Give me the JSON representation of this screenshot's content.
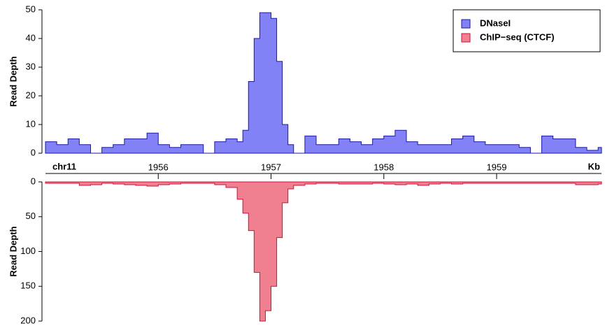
{
  "chart_data": [
    {
      "type": "area",
      "ylabel": "Read Depth",
      "ylim": [
        0,
        50
      ],
      "yticks": [
        0,
        10,
        20,
        30,
        40,
        50
      ],
      "xlim": [
        1955,
        1959.93
      ],
      "xticks": [
        1956,
        1957,
        1958,
        1959
      ],
      "x_start_label": "chr11",
      "xlabel": "Kb",
      "legend": "top-right",
      "x": [
        1955.0,
        1955.1,
        1955.2,
        1955.3,
        1955.4,
        1955.5,
        1955.6,
        1955.7,
        1955.8,
        1955.9,
        1956.0,
        1956.1,
        1956.2,
        1956.3,
        1956.4,
        1956.5,
        1956.6,
        1956.7,
        1956.75,
        1956.8,
        1956.85,
        1956.9,
        1956.95,
        1957.0,
        1957.05,
        1957.1,
        1957.15,
        1957.2,
        1957.3,
        1957.4,
        1957.5,
        1957.6,
        1957.7,
        1957.8,
        1957.9,
        1958.0,
        1958.1,
        1958.2,
        1958.3,
        1958.4,
        1958.5,
        1958.6,
        1958.7,
        1958.8,
        1958.9,
        1959.0,
        1959.1,
        1959.2,
        1959.3,
        1959.4,
        1959.5,
        1959.6,
        1959.7,
        1959.8,
        1959.9
      ],
      "series": [
        {
          "name": "DNaseI",
          "color": "#8282f6",
          "line_color": "#1a1aa0",
          "values": [
            4,
            3,
            5,
            3,
            0,
            2,
            3,
            5,
            5,
            7,
            3,
            2,
            3,
            3,
            0,
            4,
            5,
            4,
            8,
            25,
            40,
            49,
            49,
            47,
            32,
            10,
            3,
            0,
            6,
            3,
            3,
            5,
            4,
            3,
            5,
            6,
            8,
            4,
            3,
            3,
            3,
            5,
            6,
            4,
            3,
            3,
            3,
            2,
            0,
            6,
            5,
            5,
            2,
            1,
            2
          ]
        }
      ]
    },
    {
      "type": "area",
      "ylabel": "Read Depth",
      "ylim": [
        0,
        200
      ],
      "yticks": [
        0,
        50,
        100,
        150,
        200
      ],
      "invert_y": true,
      "xlim": [
        1955,
        1959.93
      ],
      "x": [
        1955.0,
        1955.1,
        1955.2,
        1955.3,
        1955.4,
        1955.5,
        1955.6,
        1955.7,
        1955.8,
        1955.9,
        1956.0,
        1956.1,
        1956.2,
        1956.3,
        1956.4,
        1956.5,
        1956.6,
        1956.7,
        1956.75,
        1956.8,
        1956.85,
        1956.9,
        1956.95,
        1957.0,
        1957.05,
        1957.1,
        1957.15,
        1957.2,
        1957.3,
        1957.4,
        1957.5,
        1957.6,
        1957.7,
        1957.8,
        1957.9,
        1958.0,
        1958.1,
        1958.2,
        1958.3,
        1958.4,
        1958.5,
        1958.6,
        1958.7,
        1958.8,
        1958.9,
        1959.0,
        1959.1,
        1959.2,
        1959.3,
        1959.4,
        1959.5,
        1959.6,
        1959.7,
        1959.8,
        1959.9
      ],
      "series": [
        {
          "name": "ChIP−seq (CTCF)",
          "color": "#f08090",
          "line_color": "#d0103a",
          "values": [
            2,
            2,
            2,
            5,
            4,
            2,
            3,
            4,
            5,
            6,
            4,
            3,
            2,
            2,
            2,
            4,
            8,
            25,
            45,
            70,
            130,
            200,
            185,
            150,
            80,
            30,
            10,
            5,
            3,
            2,
            2,
            3,
            3,
            3,
            2,
            3,
            4,
            3,
            5,
            3,
            2,
            3,
            2,
            2,
            2,
            2,
            2,
            2,
            2,
            2,
            2,
            2,
            4,
            4,
            3
          ]
        }
      ]
    }
  ]
}
